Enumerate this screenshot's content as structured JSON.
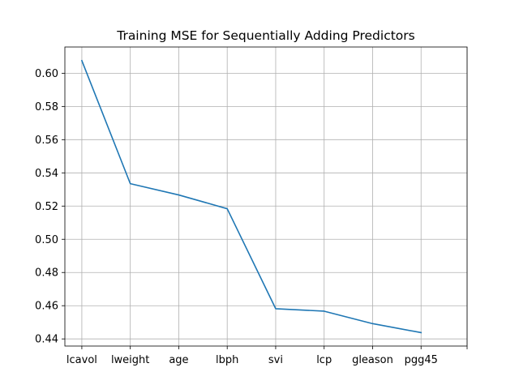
{
  "chart_data": {
    "type": "line",
    "title": "Training MSE for Sequentially Adding Predictors",
    "xlabel": "",
    "ylabel": "",
    "categories": [
      "lcavol",
      "lweight",
      "age",
      "lbph",
      "svi",
      "lcp",
      "gleason",
      "pgg45"
    ],
    "series": [
      {
        "values": [
          0.6076,
          0.5335,
          0.5267,
          0.5184,
          0.4582,
          0.4567,
          0.4492,
          0.4438
        ],
        "color": "#1f77b4"
      }
    ],
    "yticks": [
      "0.44",
      "0.46",
      "0.48",
      "0.50",
      "0.52",
      "0.54",
      "0.56",
      "0.58",
      "0.60"
    ],
    "ytick_values": [
      0.44,
      0.46,
      0.48,
      0.5,
      0.52,
      0.54,
      0.56,
      0.58,
      0.6
    ],
    "ylim": [
      0.4357,
      0.6158
    ],
    "xlim": [
      -0.35,
      7.95
    ],
    "extra_xtick": 7.95,
    "grid": true,
    "legend": "none"
  }
}
